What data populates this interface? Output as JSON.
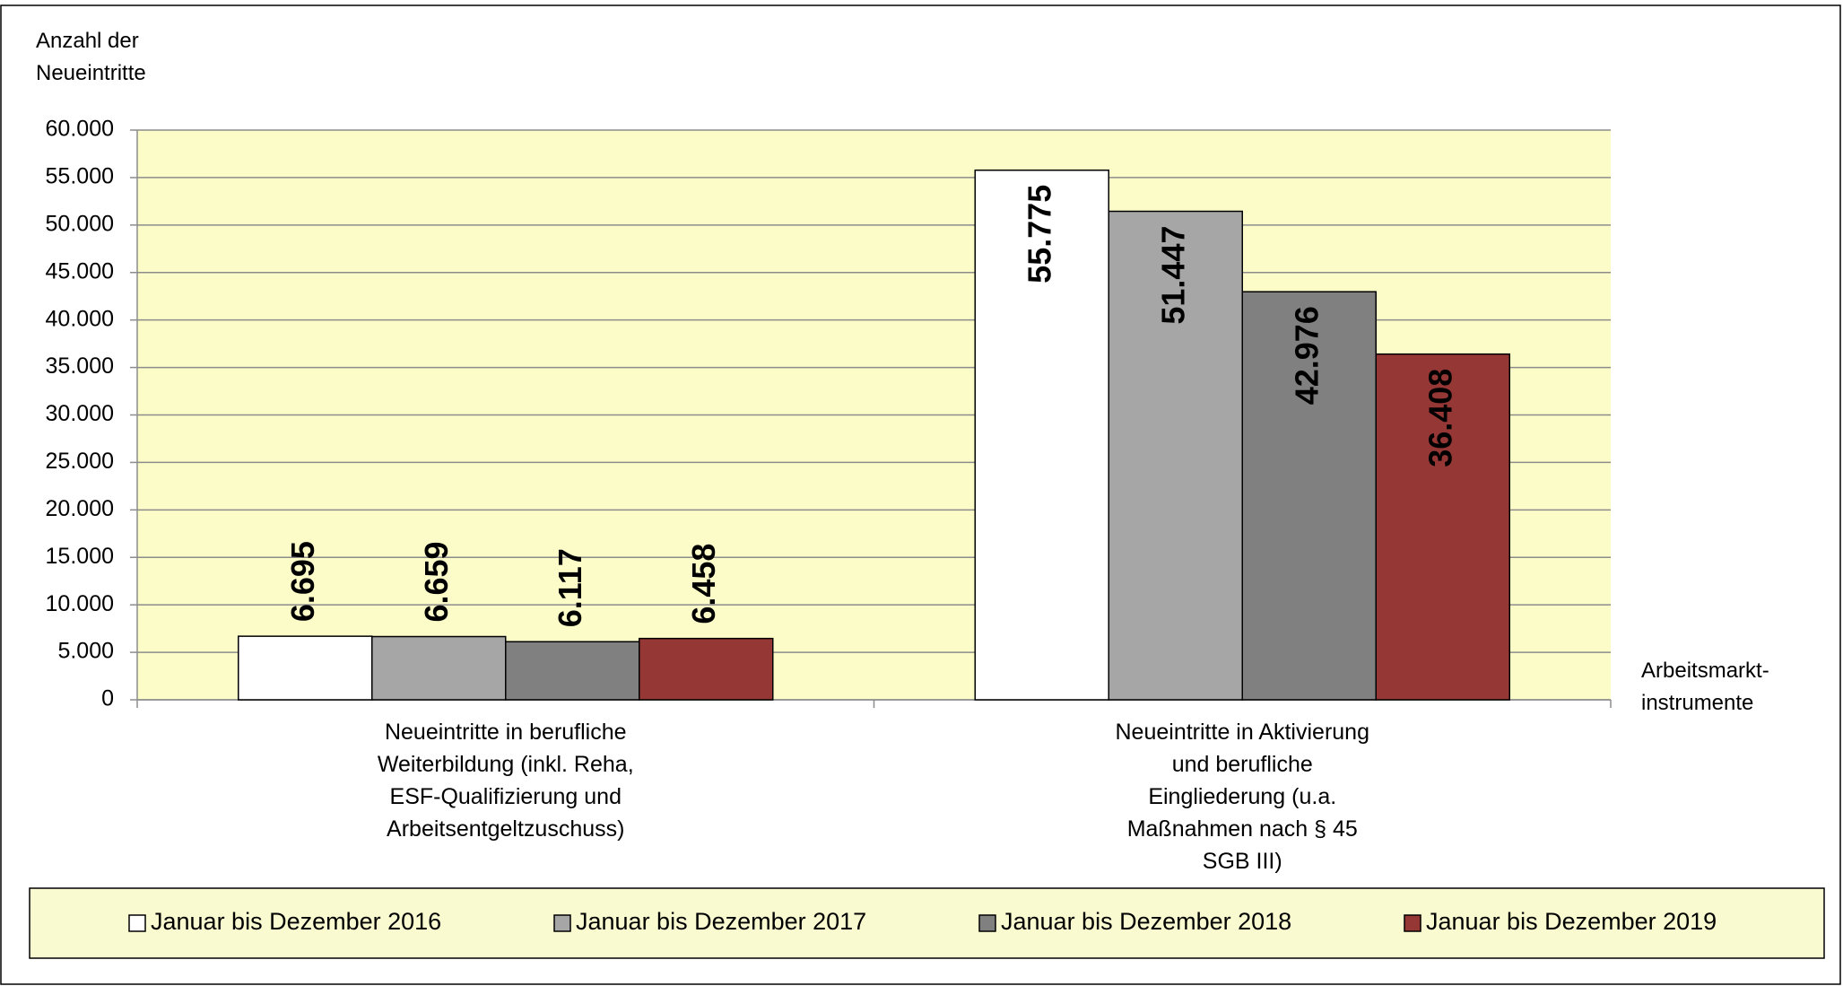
{
  "chart_data": {
    "type": "bar",
    "y_label": "Anzahl der\nNeueintritte",
    "x_label": "Arbeitsmarkt-\ninstrumente",
    "categories": [
      "Neueintritte in berufliche\nWeiterbildung (inkl. Reha,\nESF-Qualifizierung und\nArbeitsentgeltzuschuss)",
      "Neueintritte in Aktivierung\nund berufliche\nEingliederung (u.a.\nMaßnahmen nach § 45\nSGB III)"
    ],
    "series": [
      {
        "name": "Januar bis Dezember 2016",
        "color": "#ffffff",
        "values": [
          6695,
          55775
        ],
        "value_labels": [
          "6.695",
          "55.775"
        ]
      },
      {
        "name": "Januar bis Dezember 2017",
        "color": "#a6a6a6",
        "values": [
          6659,
          51447
        ],
        "value_labels": [
          "6.659",
          "51.447"
        ]
      },
      {
        "name": "Januar bis Dezember 2018",
        "color": "#808080",
        "values": [
          6117,
          42976
        ],
        "value_labels": [
          "6.117",
          "42.976"
        ]
      },
      {
        "name": "Januar bis Dezember 2019",
        "color": "#953735",
        "values": [
          6458,
          36408
        ],
        "value_labels": [
          "6.458",
          "36.408"
        ]
      }
    ],
    "ylim": [
      0,
      60000
    ],
    "yticks": [
      0,
      {
        "value": 5000,
        "label": "5.000"
      },
      {
        "value": 10000,
        "label": "10.000"
      },
      {
        "value": 15000,
        "label": "15.000"
      },
      {
        "value": 20000,
        "label": "20.000"
      },
      {
        "value": 25000,
        "label": "25.000"
      },
      {
        "value": 30000,
        "label": "30.000"
      },
      {
        "value": 35000,
        "label": "35.000"
      },
      {
        "value": 40000,
        "label": "40.000"
      },
      {
        "value": 45000,
        "label": "45.000"
      },
      {
        "value": 50000,
        "label": "50.000"
      },
      {
        "value": 55000,
        "label": "55.000"
      },
      {
        "value": 60000,
        "label": "60.000"
      }
    ],
    "grid": true,
    "plot_background": "#fcfcc8",
    "legend_position": "bottom"
  }
}
